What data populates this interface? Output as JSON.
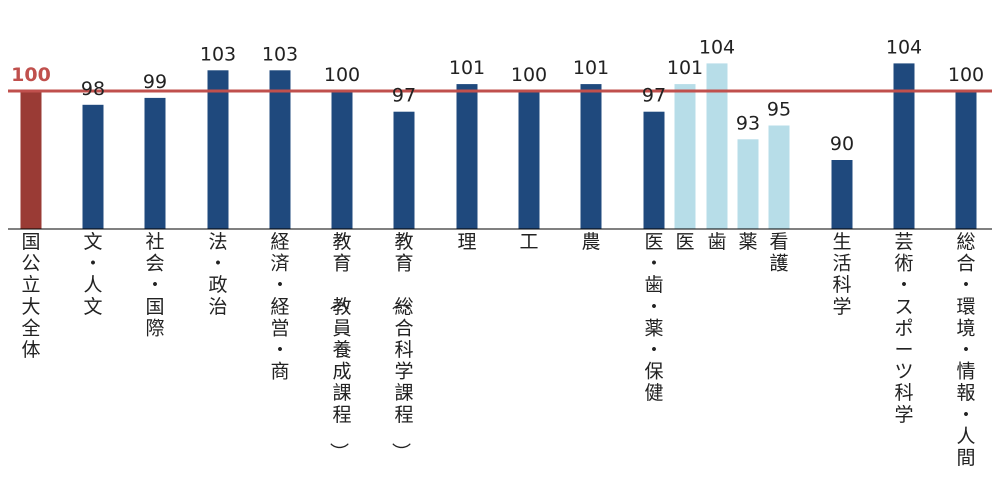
{
  "colors": {
    "reference_bar": "#9a3b35",
    "reference_line": "#c0504d",
    "primary_bar": "#1f497d",
    "detail_bar": "#b7dde8",
    "axis": "#000000"
  },
  "chart_data": {
    "type": "bar",
    "title": "",
    "xlabel": "",
    "ylabel": "",
    "ylim": [
      80,
      106
    ],
    "reference_value": 100,
    "gridlines": false,
    "legend": "none",
    "bars": [
      {
        "category": "国公立大全体",
        "value": 100,
        "style": "reference"
      },
      {
        "category": "文・人文",
        "value": 98,
        "style": "primary"
      },
      {
        "category": "社会・国際",
        "value": 99,
        "style": "primary"
      },
      {
        "category": "法・政治",
        "value": 103,
        "style": "primary"
      },
      {
        "category": "経済・経営・商",
        "value": 103,
        "style": "primary"
      },
      {
        "category": "教育（教員養成課程）",
        "value": 100,
        "style": "primary"
      },
      {
        "category": "教育（総合科学課程）",
        "value": 97,
        "style": "primary"
      },
      {
        "category": "理",
        "value": 101,
        "style": "primary"
      },
      {
        "category": "工",
        "value": 100,
        "style": "primary"
      },
      {
        "category": "農",
        "value": 101,
        "style": "primary"
      },
      {
        "category": "医・歯・薬・保健",
        "value": 97,
        "style": "primary"
      },
      {
        "category": "医",
        "value": 101,
        "style": "detail"
      },
      {
        "category": "歯",
        "value": 104,
        "style": "detail"
      },
      {
        "category": "薬",
        "value": 93,
        "style": "detail"
      },
      {
        "category": "看護",
        "value": 95,
        "style": "detail"
      },
      {
        "category": "生活科学",
        "value": 90,
        "style": "primary"
      },
      {
        "category": "芸術・スポーツ科学",
        "value": 104,
        "style": "primary"
      },
      {
        "category": "総合・環境・情報・人間",
        "value": 100,
        "style": "primary"
      }
    ]
  }
}
